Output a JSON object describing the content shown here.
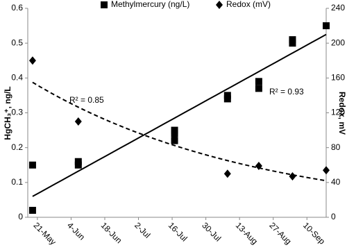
{
  "chart_data": {
    "type": "scatter",
    "x_ticks": [
      "21-May",
      "4-Jun",
      "18-Jun",
      "2-Jul",
      "16-Jul",
      "30-Jul",
      "13-Aug",
      "27-Aug",
      "10-Sep"
    ],
    "xlim": [
      "17-May",
      "18-Sep"
    ],
    "y_label": "HgCH₃⁺, ng/L",
    "y2_label": "Redox, mV",
    "ylim": [
      0,
      0.6
    ],
    "yticks": [
      0,
      0.1,
      0.2,
      0.3,
      0.4,
      0.5,
      0.6
    ],
    "y2lim": [
      0,
      240
    ],
    "y2ticks": [
      0,
      40,
      80,
      120,
      160,
      200,
      240
    ],
    "legend": "top",
    "series": [
      {
        "name": "Methylmercury (ng/L)",
        "color": "#000000",
        "marker": "square",
        "x": [
          "19-May",
          "19-May",
          "7-Jun",
          "7-Jun",
          "17-Jul",
          "17-Jul",
          "17-Jul",
          "8-Aug",
          "8-Aug",
          "21-Aug",
          "21-Aug",
          "4-Sep",
          "4-Sep",
          "18-Sep"
        ],
        "values": [
          0.15,
          0.02,
          0.16,
          0.15,
          0.25,
          0.24,
          0.22,
          0.35,
          0.34,
          0.39,
          0.37,
          0.51,
          0.5,
          0.55
        ],
        "trend": {
          "kind": "linear",
          "values": [
            0.06,
            0.525
          ],
          "label": "R² = 0.93"
        }
      },
      {
        "name": "Redox (mV)",
        "color": "#000000",
        "marker": "diamond",
        "axis": "y2",
        "x": [
          "19-May",
          "7-Jun",
          "17-Jul",
          "8-Aug",
          "21-Aug",
          "4-Sep",
          "18-Sep"
        ],
        "values": [
          180,
          110,
          90,
          50,
          59,
          47,
          54
        ],
        "trend": {
          "kind": "exponential",
          "values": [
            155,
            42
          ],
          "label": "R² = 0.85"
        }
      }
    ]
  }
}
